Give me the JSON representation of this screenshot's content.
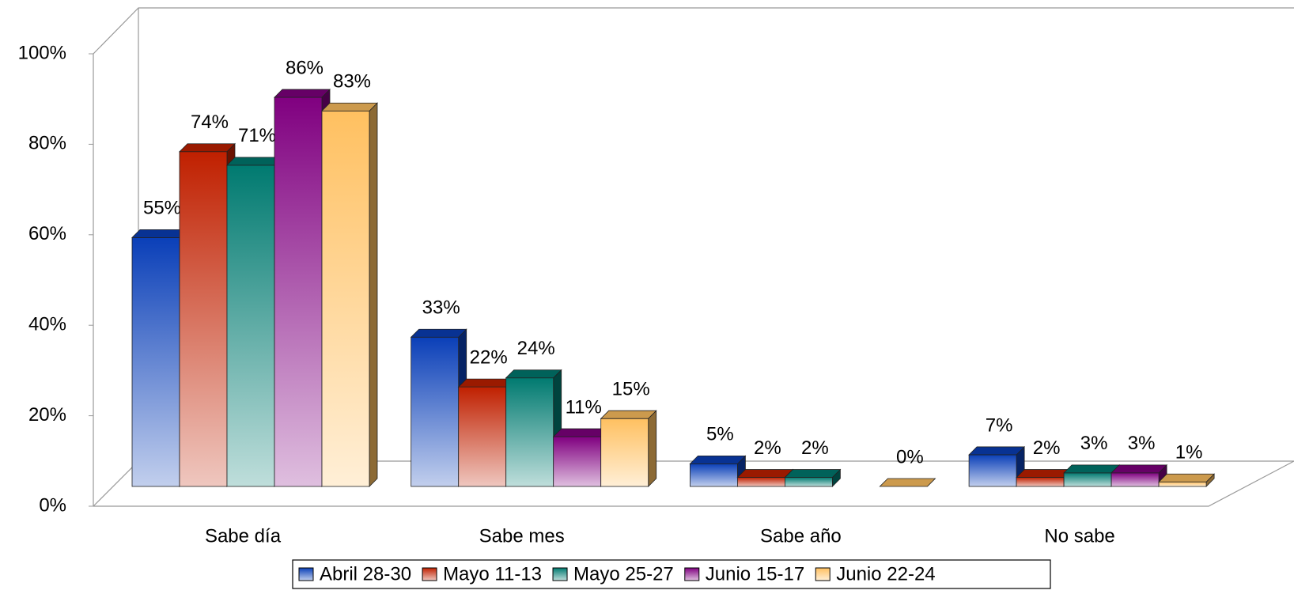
{
  "chart_data": {
    "type": "bar3d",
    "categories": [
      "Sabe día",
      "Sabe mes",
      "Sabe año",
      "No sabe"
    ],
    "series": [
      {
        "name": "Abril 28-30",
        "color": "#0a3fb8",
        "values": [
          55,
          33,
          5,
          7
        ],
        "value_labels": [
          "55%",
          "33%",
          "5%",
          "7%"
        ]
      },
      {
        "name": "Mayo 11-13",
        "color": "#c02000",
        "values": [
          74,
          22,
          2,
          2
        ],
        "value_labels": [
          "74%",
          "22%",
          "2%",
          "2%"
        ]
      },
      {
        "name": "Mayo 25-27",
        "color": "#007a70",
        "values": [
          71,
          24,
          2,
          3
        ],
        "value_labels": [
          "71%",
          "24%",
          "2%",
          "3%"
        ]
      },
      {
        "name": "Junio 15-17",
        "color": "#800080",
        "values": [
          86,
          11,
          null,
          3
        ],
        "value_labels": [
          "86%",
          "11%",
          null,
          "3%"
        ]
      },
      {
        "name": "Junio 22-24",
        "color": "#ffc060",
        "values": [
          83,
          15,
          0,
          1
        ],
        "value_labels": [
          "83%",
          "15%",
          "0%",
          "1%"
        ]
      }
    ],
    "ylim": [
      0,
      100
    ],
    "yticks": [
      {
        "value": 0,
        "label": "0%"
      },
      {
        "value": 20,
        "label": "20%"
      },
      {
        "value": 40,
        "label": "40%"
      },
      {
        "value": 60,
        "label": "60%"
      },
      {
        "value": 80,
        "label": "80%"
      },
      {
        "value": 100,
        "label": "100%"
      }
    ],
    "legend": "bottom"
  }
}
